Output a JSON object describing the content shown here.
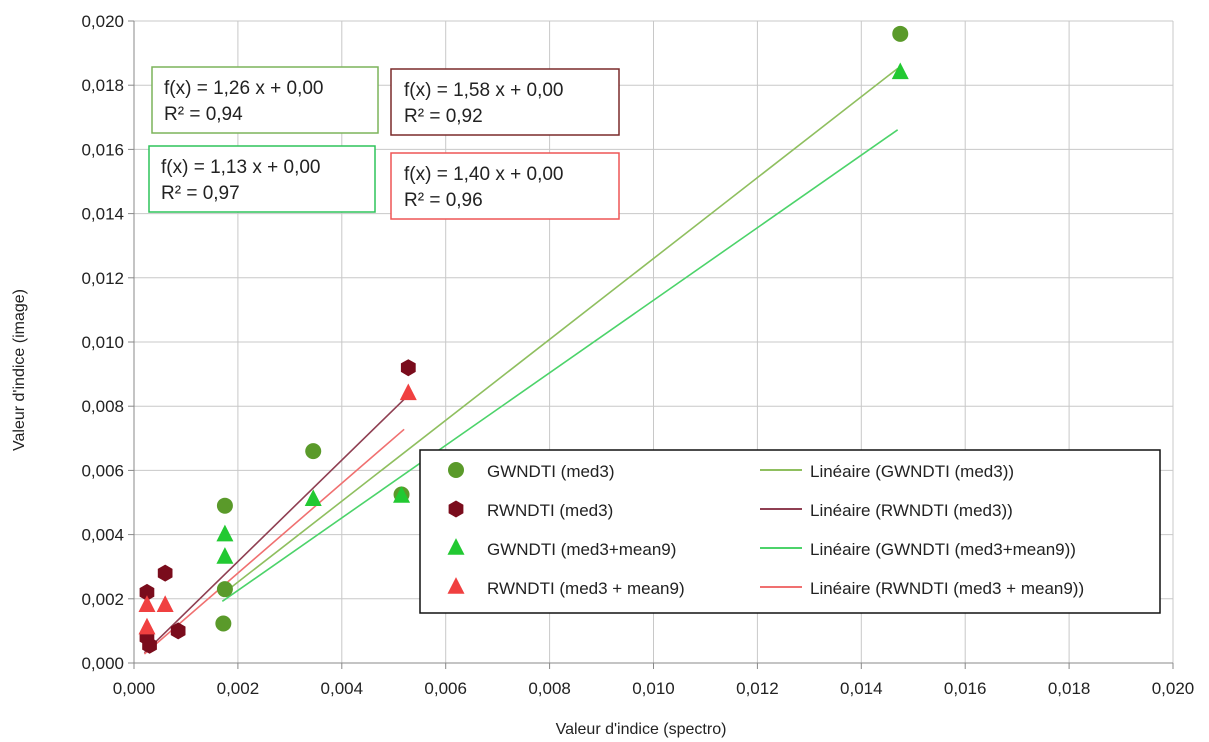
{
  "chart_data": {
    "type": "scatter",
    "xlabel": "Valeur d'indice (spectro)",
    "ylabel": "Valeur d'indice (image)",
    "xlim": [
      0,
      0.02
    ],
    "ylim": [
      0,
      0.02
    ],
    "x_ticks": [
      "0,000",
      "0,002",
      "0,004",
      "0,006",
      "0,008",
      "0,010",
      "0,012",
      "0,014",
      "0,016",
      "0,018",
      "0,020"
    ],
    "y_ticks": [
      "0,000",
      "0,002",
      "0,004",
      "0,006",
      "0,008",
      "0,010",
      "0,012",
      "0,014",
      "0,016",
      "0,018",
      "0,020"
    ],
    "grid": "horizontal and vertical",
    "legend_position": "bottom-right",
    "series": [
      {
        "name": "GWNDTI (med3)",
        "marker": "circle",
        "color": "#5a9a2a",
        "points": [
          [
            0.00175,
            0.0049
          ],
          [
            0.00175,
            0.0023
          ],
          [
            0.00172,
            0.00123
          ],
          [
            0.00345,
            0.0066
          ],
          [
            0.00515,
            0.00525
          ],
          [
            0.01475,
            0.0196
          ]
        ],
        "trend_name": "Linéaire (GWNDTI (med3))",
        "trend_color": "#8fbf5f",
        "trend_x": [
          0.0017,
          0.0147
        ],
        "equation": "f(x) = 1,26 x + 0,00",
        "r2": "R² = 0,94"
      },
      {
        "name": "RWNDTI (med3)",
        "marker": "hexagon",
        "color": "#7a0c1c",
        "points": [
          [
            0.00025,
            0.0022
          ],
          [
            0.00025,
            0.0008
          ],
          [
            0.0003,
            0.00055
          ],
          [
            0.0006,
            0.0028
          ],
          [
            0.00085,
            0.001
          ],
          [
            0.00528,
            0.0092
          ]
        ],
        "trend_name": "Linéaire (RWNDTI (med3))",
        "trend_color": "#8f3f52",
        "trend_x": [
          0.0002,
          0.0052
        ],
        "equation": "f(x) = 1,58 x + 0,00",
        "r2": "R² = 0,92"
      },
      {
        "name": "GWNDTI (med3+mean9)",
        "marker": "triangle",
        "color": "#22c932",
        "points": [
          [
            0.00175,
            0.004
          ],
          [
            0.00175,
            0.0033
          ],
          [
            0.00345,
            0.0051
          ],
          [
            0.00515,
            0.0052
          ],
          [
            0.01475,
            0.0184
          ]
        ],
        "trend_name": "Linéaire (GWNDTI (med3+mean9))",
        "trend_color": "#4cd36a",
        "trend_x": [
          0.0017,
          0.0147
        ],
        "equation": "f(x) = 1,13 x + 0,00",
        "r2": "R² = 0,97"
      },
      {
        "name": "RWNDTI (med3 + mean9)",
        "marker": "triangle",
        "color": "#f04040",
        "points": [
          [
            0.00025,
            0.0018
          ],
          [
            0.00025,
            0.0011
          ],
          [
            0.0006,
            0.0018
          ],
          [
            0.00528,
            0.0084
          ]
        ],
        "trend_name": "Linéaire (RWNDTI (med3 + mean9))",
        "trend_color": "#f07070",
        "trend_x": [
          0.0002,
          0.0052
        ],
        "equation": "f(x) = 1,40 x + 0,00",
        "r2": "R² = 0,96"
      }
    ]
  }
}
